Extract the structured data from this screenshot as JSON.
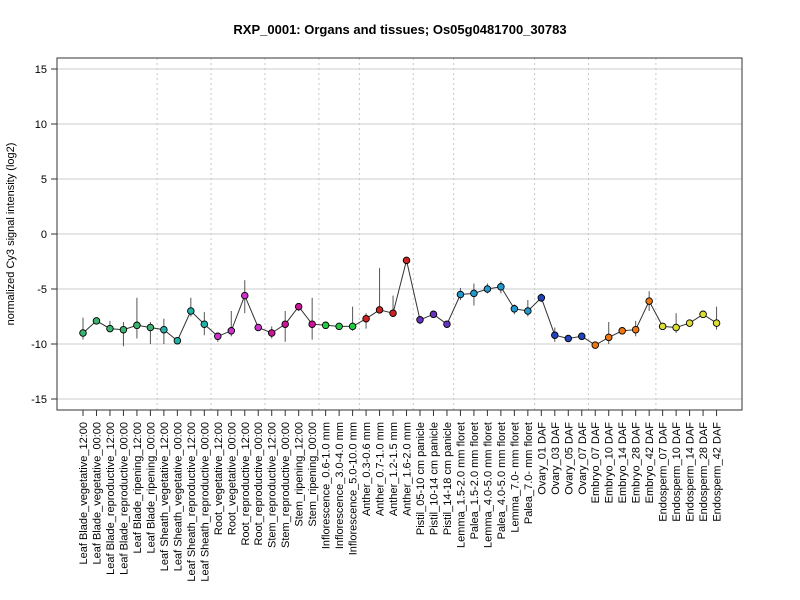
{
  "chart_data": {
    "type": "line",
    "title": "RXP_0001: Organs and tissues; Os05g0481700_30783",
    "xlabel": "",
    "ylabel": "normalized Cy3 signal intensity (log2)",
    "ylim": [
      -16,
      16
    ],
    "yticks": [
      -15,
      -10,
      -5,
      0,
      5,
      10,
      15
    ],
    "grid": "horizontal lines at y ticks; dotted vertical separators between tissue groups",
    "categories": [
      "Leaf Blade_vegetative_12:00",
      "Leaf Blade_vegetative_00:00",
      "Leaf Blade_reproductive_12:00",
      "Leaf Blade_reproductive_00:00",
      "Leaf Blade_ripening_12:00",
      "Leaf Blade_ripening_00:00",
      "Leaf Sheath_vegetative_12:00",
      "Leaf Sheath_vegetative_00:00",
      "Leaf Sheath_reproductive_12:00",
      "Leaf Sheath_reproductive_00:00",
      "Root_vegetative_12:00",
      "Root_vegetative_00:00",
      "Root_reproductive_12:00",
      "Root_reproductive_00:00",
      "Stem_reproductive_12:00",
      "Stem_reproductive_00:00",
      "Stem_ripening_12:00",
      "Stem_ripening_00:00",
      "Inflorescence_0.6-1.0 mm",
      "Inflorescence_3.0-4.0 mm",
      "Inflorescence_5.0-10.0 mm",
      "Anther_0.3-0.6 mm",
      "Anther_0.7-1.0 mm",
      "Anther_1.2-1.5 mm",
      "Anther_1.6-2.0 mm",
      "Pistil_05-10 cm panicle",
      "Pistil_10-14 cm panicle",
      "Pistil_14-18 cm panicle",
      "Lemma_1.5-2.0 mm floret",
      "Palea_1.5-2.0 mm floret",
      "Lemma_4.0-5.0 mm floret",
      "Palea_4.0-5.0 mm floret",
      "Lemma_7.0- mm floret",
      "Palea_7.0- mm floret",
      "Ovary_01 DAF",
      "Ovary_03 DAF",
      "Ovary_05 DAF",
      "Ovary_07 DAF",
      "Embryo_07 DAF",
      "Embryo_10 DAF",
      "Embryo_14 DAF",
      "Embryo_28 DAF",
      "Embryo_42 DAF",
      "Endosperm_07 DAF",
      "Endosperm_10 DAF",
      "Endosperm_14 DAF",
      "Endosperm_28 DAF",
      "Endosperm_42 DAF"
    ],
    "values": [
      -9.0,
      -7.9,
      -8.6,
      -8.7,
      -8.3,
      -8.5,
      -8.7,
      -9.7,
      -7.0,
      -8.2,
      -9.3,
      -8.8,
      -5.6,
      -8.5,
      -9.0,
      -8.2,
      -6.6,
      -8.2,
      -8.3,
      -8.4,
      -8.4,
      -7.7,
      -6.9,
      -7.2,
      -2.4,
      -7.8,
      -7.3,
      -8.2,
      -5.5,
      -5.4,
      -5.0,
      -4.8,
      -6.8,
      -7.0,
      -5.8,
      -9.2,
      -9.5,
      -9.3,
      -10.1,
      -9.4,
      -8.8,
      -8.7,
      -6.1,
      -8.4,
      -8.5,
      -8.1,
      -7.3,
      -8.1
    ],
    "err_low": [
      -9.6,
      -8.2,
      -8.8,
      -10.2,
      -9.5,
      -10.0,
      -10.0,
      -9.9,
      -7.5,
      -9.2,
      -9.8,
      -9.3,
      -7.2,
      -8.7,
      -9.5,
      -9.8,
      -7.0,
      -9.6,
      -8.5,
      -8.6,
      -8.8,
      -8.6,
      -7.1,
      -7.4,
      -2.6,
      -8.2,
      -7.4,
      -8.4,
      -6.0,
      -6.5,
      -5.4,
      -5.4,
      -7.3,
      -7.5,
      -6.2,
      -9.8,
      -9.7,
      -9.6,
      -10.3,
      -10.0,
      -9.0,
      -9.3,
      -7.0,
      -8.6,
      -9.0,
      -8.4,
      -7.6,
      -8.7
    ],
    "err_high": [
      -7.6,
      -7.6,
      -7.9,
      -8.0,
      -5.8,
      -8.0,
      -7.7,
      -9.5,
      -5.8,
      -7.1,
      -9.0,
      -7.0,
      -4.2,
      -8.3,
      -8.4,
      -7.0,
      -6.4,
      -5.8,
      -8.1,
      -8.2,
      -6.6,
      -7.2,
      -3.1,
      -5.6,
      -2.2,
      -7.6,
      -7.1,
      -7.9,
      -4.9,
      -4.5,
      -4.5,
      -4.3,
      -6.4,
      -6.0,
      -5.4,
      -8.5,
      -9.3,
      -9.0,
      -9.9,
      -8.0,
      -8.5,
      -7.9,
      -5.2,
      -8.2,
      -7.2,
      -7.8,
      -7.0,
      -6.6
    ],
    "colors": [
      "#3cb371",
      "#3cb371",
      "#3cb371",
      "#3cb371",
      "#3cb371",
      "#3cb371",
      "#20b2aa",
      "#20b2aa",
      "#20b2aa",
      "#20b2aa",
      "#cc33cc",
      "#cc33cc",
      "#cc33cc",
      "#cc33cc",
      "#cc1499",
      "#cc1499",
      "#cc1499",
      "#cc1499",
      "#22cc44",
      "#22cc44",
      "#22cc44",
      "#cc2222",
      "#cc2222",
      "#cc2222",
      "#cc2222",
      "#6633bb",
      "#6633bb",
      "#6633bb",
      "#2299cc",
      "#2299cc",
      "#2299cc",
      "#2299cc",
      "#2299cc",
      "#2299cc",
      "#2244bb",
      "#2244bb",
      "#2244bb",
      "#2244bb",
      "#ee7711",
      "#ee7711",
      "#ee7711",
      "#ee7711",
      "#ee7711",
      "#dddd33",
      "#dddd33",
      "#dddd33",
      "#dddd33",
      "#dddd33"
    ],
    "group_separators_after_index": [
      5,
      9,
      13,
      17,
      20,
      24,
      27,
      33,
      37,
      42
    ]
  }
}
